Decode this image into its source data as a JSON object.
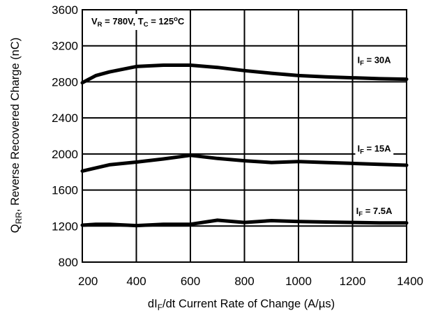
{
  "chart_data": {
    "type": "line",
    "xlabel": {
      "main": "dI",
      "sub": "F",
      "rest": "/dt Current Rate of Change (A/",
      "mu": "µ",
      "end": "s)"
    },
    "ylabel": {
      "main": "Q",
      "sub": "RR",
      "rest": ", Reverse Recovered Charge (nC)"
    },
    "xlim": [
      200,
      1400
    ],
    "ylim": [
      800,
      3600
    ],
    "x_ticks": [
      200,
      400,
      600,
      800,
      1000,
      1200,
      1400
    ],
    "y_ticks": [
      800,
      1200,
      1600,
      2000,
      2400,
      2800,
      3200,
      3600
    ],
    "grid": true,
    "conditions": {
      "vr": {
        "main": "V",
        "sub": "R",
        "rest": " = 780V, T",
        "sub2": "C",
        "rest2": " = 125",
        "deg": "o",
        "end": "C"
      }
    },
    "series": [
      {
        "name": "I_F = 30A",
        "label": {
          "main": "I",
          "sub": "F",
          "rest": " = 30A"
        },
        "label_at": [
          1280,
          3010
        ],
        "x": [
          200,
          250,
          300,
          400,
          500,
          600,
          700,
          800,
          900,
          1000,
          1100,
          1200,
          1300,
          1400
        ],
        "y": [
          2790,
          2870,
          2910,
          2970,
          2985,
          2985,
          2960,
          2925,
          2895,
          2870,
          2855,
          2845,
          2835,
          2830
        ]
      },
      {
        "name": "I_F = 15A",
        "label": {
          "main": "I",
          "sub": "F",
          "rest": " = 15A"
        },
        "label_at": [
          1280,
          2025
        ],
        "x": [
          200,
          300,
          400,
          500,
          600,
          700,
          800,
          900,
          1000,
          1100,
          1200,
          1300,
          1400
        ],
        "y": [
          1810,
          1880,
          1910,
          1945,
          1985,
          1950,
          1925,
          1905,
          1915,
          1905,
          1895,
          1885,
          1875
        ]
      },
      {
        "name": "I_F = 7.5A",
        "label": {
          "main": "I",
          "sub": "F",
          "rest": " = 7.5A"
        },
        "label_at": [
          1280,
          1335
        ],
        "x": [
          200,
          250,
          300,
          400,
          500,
          600,
          700,
          800,
          900,
          1000,
          1100,
          1200,
          1300,
          1400
        ],
        "y": [
          1210,
          1220,
          1220,
          1205,
          1220,
          1220,
          1265,
          1240,
          1260,
          1250,
          1245,
          1240,
          1235,
          1235
        ]
      }
    ]
  }
}
